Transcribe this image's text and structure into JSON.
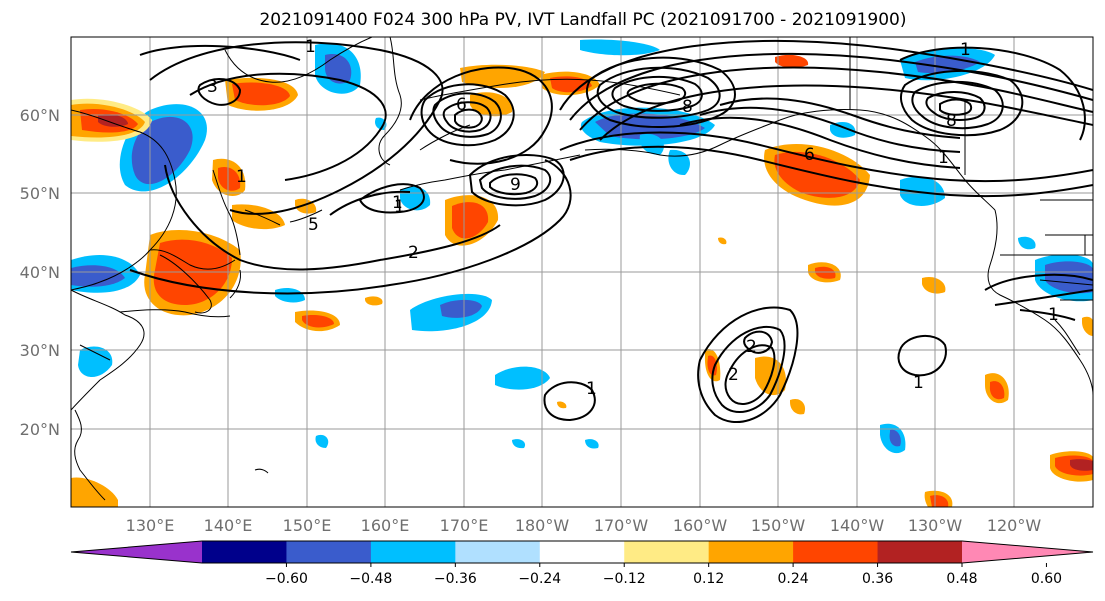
{
  "title": "2021091400 F024 300 hPa PV, IVT Landfall PC (2021091700 - 2021091900)",
  "map": {
    "lat_labels": [
      "60°N",
      "50°N",
      "40°N",
      "30°N",
      "20°N"
    ],
    "lon_labels": [
      "130°E",
      "140°E",
      "150°E",
      "160°E",
      "170°E",
      "180°W",
      "170°W",
      "160°W",
      "150°W",
      "140°W",
      "130°W",
      "120°W"
    ]
  },
  "contour_labels": [
    "1",
    "3",
    "1",
    "2",
    "1",
    "5",
    "6",
    "9",
    "8",
    "6",
    "1",
    "8",
    "1",
    "1",
    "2",
    "2",
    "1",
    "1",
    "1"
  ],
  "colorbar": {
    "colors": [
      "#9932cc",
      "#00008b",
      "#3a5ccc",
      "#00bfff",
      "#b0e0ff",
      "#ffffff",
      "#ffeb85",
      "#ffa500",
      "#ff4500",
      "#b22222",
      "#ff88b4"
    ],
    "ticks": [
      "−0.60",
      "−0.48",
      "−0.36",
      "−0.24",
      "−0.12",
      "0.12",
      "0.24",
      "0.36",
      "0.48",
      "0.60"
    ]
  }
}
